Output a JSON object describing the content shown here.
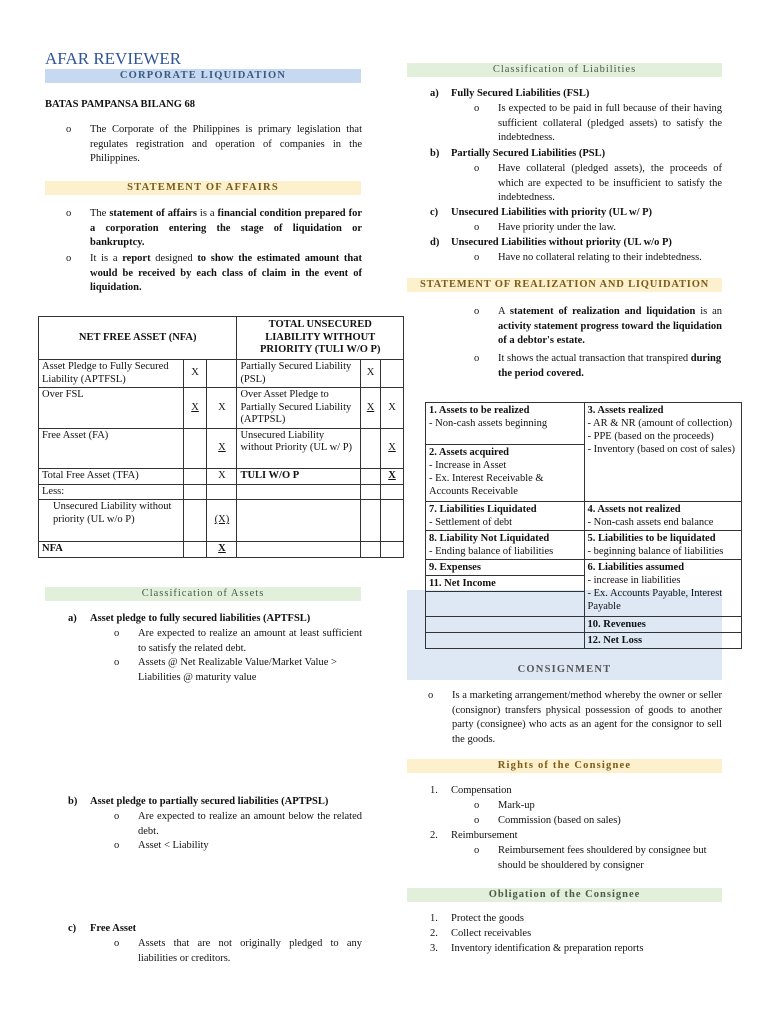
{
  "title": "AFAR REVIEWER",
  "left": {
    "corporate_liquidation": "CORPORATE LIQUIDATION",
    "law": "BATAS PAMPANSA BILANG 68",
    "law_bullet": "The Corporate of the Philippines is primary legislation that regulates registration and operation of companies in the Philippines.",
    "soa_header": "STATEMENT OF AFFAIRS",
    "soa_b1_pre": "The",
    "soa_b1_bold": "statement of affairs",
    "soa_b1_mid": "is a",
    "soa_b1_bold2": "financial condition prepared for a corporation entering the stage of liquidation or bankruptcy.",
    "soa_b2_pre": "It is a",
    "soa_b2_mid": "report",
    "soa_b2_mid2": "designed",
    "soa_b2_bold": "to show the estimated amount that would be received by each class of claim in the event of liquidation.",
    "nfa_table": {
      "head_left": "NET FREE ASSET (NFA)",
      "head_right": "TOTAL UNSECURED LIABILITY WITHOUT PRIORITY (TULI W/O P)",
      "rows": [
        {
          "l": "Asset Pledge to Fully Secured Liability (APTFSL)",
          "l1": "X",
          "l2": "",
          "r": "Partially Secured Liability (PSL)",
          "r1": "X",
          "r2": ""
        },
        {
          "l": "Over FSL",
          "l1": "X",
          "l2": "X",
          "r": "Over Asset Pledge to Partially Secured Liability (APTPSL)",
          "r1": "X",
          "r2": "X"
        },
        {
          "l": "Free Asset (FA)",
          "l1": "",
          "l2": "X",
          "r": "Unsecured Liability without Priority (UL w/ P)",
          "r1": "",
          "r2": "X"
        },
        {
          "l": "Total Free Asset (TFA)",
          "l1": "",
          "l2": "X",
          "r": "TULI W/O P",
          "r1": "",
          "r2": "X"
        },
        {
          "l": "Less:",
          "l1": "",
          "l2": "",
          "r": "",
          "r1": "",
          "r2": ""
        },
        {
          "l": "Unsecured Liability without priority (UL w/o P)",
          "l1": "",
          "l2": "(X)",
          "r": "",
          "r1": "",
          "r2": ""
        },
        {
          "l": "NFA",
          "l1": "",
          "l2": "X",
          "r": "",
          "r1": "",
          "r2": ""
        }
      ]
    },
    "coa_header": "Classification of Assets",
    "a_label": "a)",
    "a_title": "Asset pledge to fully secured liabilities (APTFSL)",
    "a_b1": "Are expected to realize an amount at least sufficient to satisfy the related debt.",
    "a_b2": "Assets @ Net Realizable Value/Market Value > Liabilities @ maturity value",
    "b_label": "b)",
    "b_title": "Asset pledge to partially secured liabilities (APTPSL)",
    "b_b1": "Are expected to realize an amount below the related debt.",
    "b_b2": "Asset < Liability",
    "c_label": "c)",
    "c_title": "Free Asset",
    "c_b1": "Assets that are not originally pledged to any liabilities or creditors."
  },
  "right": {
    "col_header": "Classification of Liabilities",
    "items": [
      {
        "label": "a)",
        "title": "Fully Secured Liabilities (FSL)",
        "bullet": "Is expected to be paid in full because of their having sufficient collateral (pledged assets) to satisfy the indebtedness."
      },
      {
        "label": "b)",
        "title": "Partially Secured Liabilities (PSL)",
        "bullet": "Have collateral (pledged assets), the proceeds of which are expected to be insufficient to satisfy the indebtedness."
      },
      {
        "label": "c)",
        "title": "Unsecured Liabilities with priority (UL w/ P)",
        "bullet": "Have priority under the law."
      },
      {
        "label": "d)",
        "title": "Unsecured Liabilities without priority (UL w/o P)",
        "bullet": "Have no collateral relating to their indebtedness."
      }
    ],
    "srl_header": "STATEMENT OF REALIZATION AND LIQUIDATION",
    "srl_b1_pre": "A",
    "srl_b1_bold": "statement of realization and liquidation",
    "srl_b1_mid": "is an",
    "srl_b1_bold2": "activity statement progress toward the liquidation of a debtor's estate.",
    "srl_b2_pre": "It shows the actual transaction that transpired",
    "srl_b2_bold": "during the period covered.",
    "srl_table": {
      "c1": "1. Assets to be realized",
      "c1d": "- Non-cash assets beginning",
      "c2": "2. Assets acquired",
      "c2d": [
        "- Increase in Asset",
        "- Ex. Interest Receivable & Accounts Receivable"
      ],
      "c3": "3. Assets realized",
      "c3d": [
        "- AR & NR (amount of collection)",
        "- PPE (based on the proceeds)",
        "- Inventory (based on cost of sales)"
      ],
      "c7": "7. Liabilities Liquidated",
      "c7d": "- Settlement of debt",
      "c4": "4. Assets not realized",
      "c4d": "- Non-cash assets end balance",
      "c8": "8. Liability Not Liquidated",
      "c8d": "- Ending balance of liabilities",
      "c5": "5. Liabilities to be liquidated",
      "c5d": "- beginning balance of liabilities",
      "c9": "9. Expenses",
      "c11": "11. Net Income",
      "c6": "6. Liabilities assumed",
      "c6d": [
        "- increase in liabilities",
        "- Ex. Accounts Payable, Interest Payable"
      ],
      "c10": "10. Revenues",
      "c12": "12. Net Loss"
    },
    "consignment_header": "CONSIGNMENT",
    "consignment_bullet": "Is a marketing arrangement/method whereby the owner or seller (consignor) transfers physical possession of goods to another party (consignee) who acts as an agent for the consignor to sell the goods.",
    "rights_header": "Rights of the Consignee",
    "rights": [
      {
        "n": "1.",
        "t": "Compensation",
        "subs": [
          "Mark-up",
          "Commission (based on sales)"
        ]
      },
      {
        "n": "2.",
        "t": "Reimbursement",
        "subs": [
          "Reimbursement fees shouldered by consignee but should be shouldered by consigner"
        ]
      }
    ],
    "obligation_header": "Obligation of the Consignee",
    "obligations": [
      {
        "n": "1.",
        "t": "Protect the goods"
      },
      {
        "n": "2.",
        "t": "Collect receivables"
      },
      {
        "n": "3.",
        "t": "Inventory identification & preparation reports"
      }
    ]
  }
}
